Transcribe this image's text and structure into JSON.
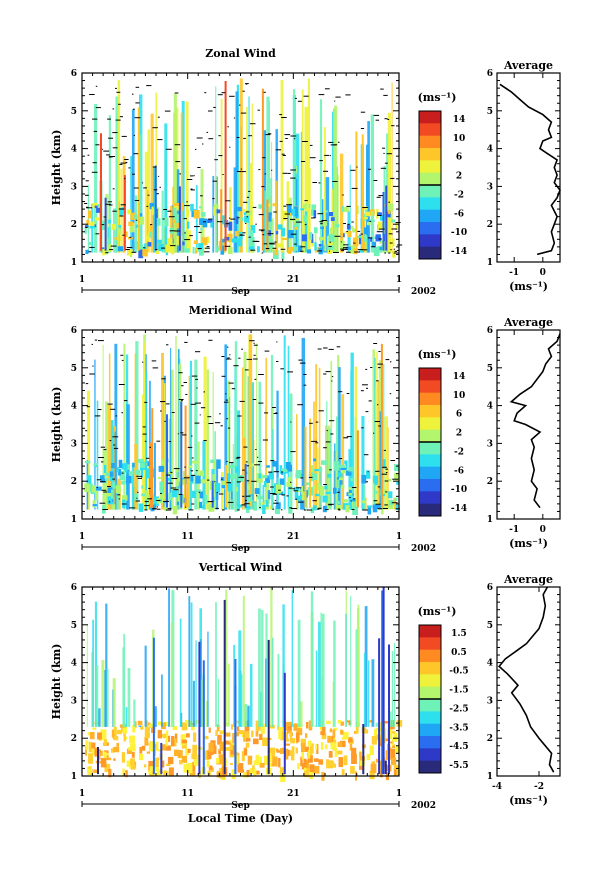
{
  "chart_data": [
    {
      "type": "heatmap",
      "title": "Zonal Wind",
      "ylabel": "Height (km)",
      "ylim": [
        1,
        6
      ],
      "yticks": [
        "1",
        "2",
        "3",
        "4",
        "5",
        "6"
      ],
      "xticks": [
        "1",
        "11",
        "21",
        "1"
      ],
      "xrange_label": "Sep",
      "year": "2002",
      "colorbar": {
        "unit_label": "(ms⁻¹)",
        "tick_labels": [
          "14",
          "10",
          "6",
          "2",
          "-2",
          "-6",
          "-10",
          "-14"
        ],
        "range": [
          -14,
          14
        ]
      },
      "average": {
        "title": "Average",
        "xlabel": "(ms⁻¹)",
        "xticks": [
          "-1",
          "0"
        ],
        "xlim": [
          -1.6,
          0.6
        ],
        "yticks": [
          "1",
          "2",
          "3",
          "4",
          "5",
          "6"
        ],
        "profile": [
          [
            -0.2,
            1.2
          ],
          [
            0.3,
            1.3
          ],
          [
            0.4,
            1.5
          ],
          [
            0.3,
            1.8
          ],
          [
            0.4,
            2.0
          ],
          [
            0.5,
            2.2
          ],
          [
            0.3,
            2.5
          ],
          [
            0.5,
            2.7
          ],
          [
            0.6,
            2.9
          ],
          [
            0.4,
            3.1
          ],
          [
            0.5,
            3.3
          ],
          [
            0.4,
            3.5
          ],
          [
            0.5,
            3.7
          ],
          [
            0.1,
            3.9
          ],
          [
            -0.1,
            4.0
          ],
          [
            0.0,
            4.2
          ],
          [
            0.3,
            4.3
          ],
          [
            0.2,
            4.5
          ],
          [
            0.3,
            4.7
          ],
          [
            0.0,
            4.9
          ],
          [
            -0.5,
            5.1
          ],
          [
            -0.8,
            5.3
          ],
          [
            -1.1,
            5.5
          ],
          [
            -1.5,
            5.7
          ]
        ]
      }
    },
    {
      "type": "heatmap",
      "title": "Meridional Wind",
      "ylabel": "Height (km)",
      "ylim": [
        1,
        6
      ],
      "yticks": [
        "1",
        "2",
        "3",
        "4",
        "5",
        "6"
      ],
      "xticks": [
        "1",
        "11",
        "21",
        "1"
      ],
      "xrange_label": "Sep",
      "year": "2002",
      "colorbar": {
        "unit_label": "(ms⁻¹)",
        "tick_labels": [
          "14",
          "10",
          "6",
          "2",
          "-2",
          "-6",
          "-10",
          "-14"
        ],
        "range": [
          -14,
          14
        ]
      },
      "average": {
        "title": "Average",
        "xlabel": "(ms⁻¹)",
        "xticks": [
          "-1",
          "0"
        ],
        "xlim": [
          -1.6,
          0.6
        ],
        "yticks": [
          "1",
          "2",
          "3",
          "4",
          "5",
          "6"
        ],
        "profile": [
          [
            -0.1,
            1.3
          ],
          [
            -0.3,
            1.5
          ],
          [
            -0.2,
            1.8
          ],
          [
            -0.4,
            2.0
          ],
          [
            -0.3,
            2.3
          ],
          [
            -0.4,
            2.6
          ],
          [
            -0.3,
            2.9
          ],
          [
            -0.4,
            3.1
          ],
          [
            -0.1,
            3.3
          ],
          [
            -0.6,
            3.5
          ],
          [
            -1.0,
            3.6
          ],
          [
            -0.9,
            3.8
          ],
          [
            -0.6,
            4.0
          ],
          [
            -1.1,
            4.1
          ],
          [
            -0.8,
            4.3
          ],
          [
            -0.4,
            4.5
          ],
          [
            -0.2,
            4.7
          ],
          [
            0.0,
            4.9
          ],
          [
            0.1,
            5.1
          ],
          [
            0.3,
            5.3
          ],
          [
            0.2,
            5.5
          ],
          [
            0.5,
            5.7
          ],
          [
            0.6,
            5.9
          ]
        ]
      }
    },
    {
      "type": "heatmap",
      "title": "Vertical Wind",
      "xlabel": "Local Time (Day)",
      "ylabel": "Height (km)",
      "ylim": [
        1,
        6
      ],
      "yticks": [
        "1",
        "2",
        "3",
        "4",
        "5",
        "6"
      ],
      "xticks": [
        "1",
        "11",
        "21",
        "1"
      ],
      "xrange_label": "Sep",
      "year": "2002",
      "colorbar": {
        "unit_label": "(ms⁻¹)",
        "tick_labels": [
          "1.5",
          "0.5",
          "-0.5",
          "-1.5",
          "-2.5",
          "-3.5",
          "-4.5",
          "-5.5"
        ],
        "range": [
          -6,
          2
        ]
      },
      "average": {
        "title": "Average",
        "xlabel": "(ms⁻¹)",
        "xticks": [
          "-4",
          "-2"
        ],
        "xlim": [
          -4,
          -1
        ],
        "yticks": [
          "1",
          "2",
          "3",
          "4",
          "5",
          "6"
        ],
        "profile": [
          [
            -1.3,
            1.1
          ],
          [
            -1.5,
            1.3
          ],
          [
            -1.4,
            1.6
          ],
          [
            -1.7,
            1.8
          ],
          [
            -2.0,
            2.0
          ],
          [
            -2.4,
            2.3
          ],
          [
            -2.6,
            2.6
          ],
          [
            -2.9,
            2.9
          ],
          [
            -3.3,
            3.2
          ],
          [
            -3.0,
            3.4
          ],
          [
            -3.5,
            3.7
          ],
          [
            -3.9,
            3.9
          ],
          [
            -3.6,
            4.1
          ],
          [
            -3.1,
            4.3
          ],
          [
            -2.6,
            4.5
          ],
          [
            -2.3,
            4.7
          ],
          [
            -2.0,
            4.9
          ],
          [
            -1.8,
            5.2
          ],
          [
            -1.7,
            5.5
          ],
          [
            -1.8,
            5.8
          ],
          [
            -1.6,
            6.0
          ]
        ]
      }
    }
  ]
}
